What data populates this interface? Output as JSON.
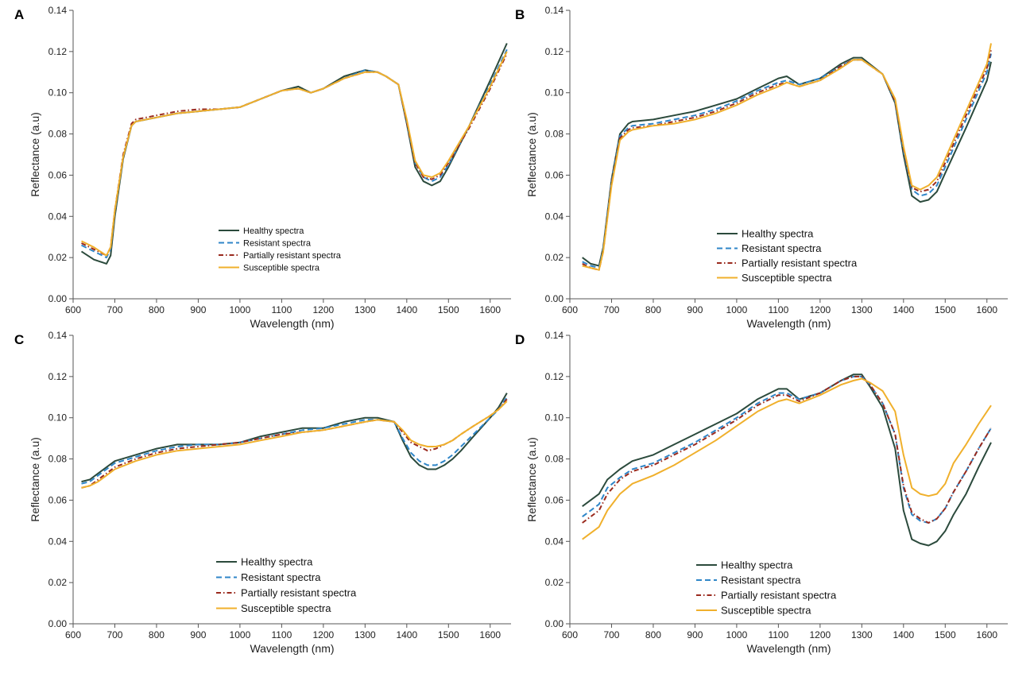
{
  "colors": {
    "healthy": "#2b4a3c",
    "resistant": "#2f86c8",
    "partially_resistant": "#9a2a1e",
    "susceptible": "#f0b02c"
  },
  "chart_data": [
    {
      "panel": "A",
      "type": "line",
      "xlabel": "Wavelength (nm)",
      "ylabel": "Reflectance (a.u)",
      "xlim": [
        600,
        1650
      ],
      "ylim": [
        0,
        0.14
      ],
      "xticks": [
        600,
        700,
        800,
        900,
        1000,
        1100,
        1200,
        1300,
        1400,
        1500,
        1600
      ],
      "yticks": [
        "0.00",
        "0.02",
        "0.04",
        "0.06",
        "0.08",
        "0.10",
        "0.12",
        "0.14"
      ],
      "legend_position": "lower-center",
      "x": [
        620,
        650,
        680,
        690,
        700,
        720,
        740,
        750,
        800,
        850,
        900,
        950,
        1000,
        1050,
        1100,
        1140,
        1170,
        1200,
        1250,
        1300,
        1330,
        1350,
        1380,
        1400,
        1420,
        1440,
        1460,
        1480,
        1500,
        1550,
        1600,
        1640
      ],
      "series": [
        {
          "name": "Healthy spectra",
          "key": "healthy",
          "dash": "solid",
          "values": [
            0.023,
            0.019,
            0.017,
            0.021,
            0.04,
            0.068,
            0.084,
            0.086,
            0.088,
            0.09,
            0.091,
            0.092,
            0.093,
            0.097,
            0.101,
            0.103,
            0.1,
            0.102,
            0.108,
            0.111,
            0.11,
            0.108,
            0.104,
            0.085,
            0.064,
            0.057,
            0.055,
            0.057,
            0.064,
            0.084,
            0.106,
            0.124
          ]
        },
        {
          "name": "Resistant spectra",
          "key": "resistant",
          "dash": "dashed",
          "values": [
            0.026,
            0.023,
            0.02,
            0.024,
            0.042,
            0.069,
            0.084,
            0.086,
            0.088,
            0.09,
            0.091,
            0.092,
            0.093,
            0.097,
            0.101,
            0.102,
            0.1,
            0.102,
            0.107,
            0.111,
            0.11,
            0.108,
            0.104,
            0.086,
            0.066,
            0.059,
            0.057,
            0.059,
            0.065,
            0.084,
            0.104,
            0.121
          ]
        },
        {
          "name": "Partially resistant spectra",
          "key": "partially_resistant",
          "dash": "dashdot",
          "values": [
            0.027,
            0.024,
            0.021,
            0.025,
            0.043,
            0.07,
            0.085,
            0.087,
            0.089,
            0.091,
            0.092,
            0.092,
            0.093,
            0.097,
            0.101,
            0.102,
            0.1,
            0.102,
            0.107,
            0.11,
            0.11,
            0.108,
            0.104,
            0.086,
            0.066,
            0.059,
            0.058,
            0.06,
            0.066,
            0.083,
            0.102,
            0.119
          ]
        },
        {
          "name": "Susceptible spectra",
          "key": "susceptible",
          "dash": "solid",
          "values": [
            0.028,
            0.025,
            0.021,
            0.025,
            0.043,
            0.069,
            0.084,
            0.086,
            0.088,
            0.09,
            0.091,
            0.092,
            0.093,
            0.097,
            0.101,
            0.102,
            0.1,
            0.102,
            0.107,
            0.11,
            0.11,
            0.108,
            0.104,
            0.087,
            0.067,
            0.06,
            0.059,
            0.061,
            0.067,
            0.084,
            0.103,
            0.12
          ]
        }
      ]
    },
    {
      "panel": "B",
      "type": "line",
      "xlabel": "Wavelength (nm)",
      "ylabel": "Reflectance (a.u)",
      "xlim": [
        600,
        1650
      ],
      "ylim": [
        0,
        0.14
      ],
      "xticks": [
        600,
        700,
        800,
        900,
        1000,
        1100,
        1200,
        1300,
        1400,
        1500,
        1600
      ],
      "yticks": [
        "0.00",
        "0.02",
        "0.04",
        "0.06",
        "0.08",
        "0.10",
        "0.12",
        "0.14"
      ],
      "legend_position": "lower-center",
      "x": [
        630,
        650,
        670,
        680,
        700,
        720,
        740,
        750,
        800,
        850,
        900,
        950,
        1000,
        1050,
        1100,
        1120,
        1150,
        1200,
        1250,
        1280,
        1300,
        1350,
        1380,
        1400,
        1420,
        1440,
        1460,
        1480,
        1500,
        1550,
        1600,
        1610
      ],
      "series": [
        {
          "name": "Healthy spectra",
          "key": "healthy",
          "dash": "solid",
          "values": [
            0.02,
            0.017,
            0.016,
            0.025,
            0.058,
            0.08,
            0.085,
            0.086,
            0.087,
            0.089,
            0.091,
            0.094,
            0.097,
            0.102,
            0.107,
            0.108,
            0.104,
            0.107,
            0.114,
            0.117,
            0.117,
            0.109,
            0.095,
            0.07,
            0.05,
            0.047,
            0.048,
            0.052,
            0.061,
            0.083,
            0.106,
            0.115
          ]
        },
        {
          "name": "Resistant spectra",
          "key": "resistant",
          "dash": "dashed",
          "values": [
            0.018,
            0.016,
            0.015,
            0.024,
            0.057,
            0.079,
            0.083,
            0.084,
            0.085,
            0.087,
            0.089,
            0.092,
            0.096,
            0.101,
            0.105,
            0.106,
            0.104,
            0.107,
            0.113,
            0.116,
            0.116,
            0.109,
            0.096,
            0.072,
            0.053,
            0.05,
            0.051,
            0.055,
            0.064,
            0.087,
            0.11,
            0.119
          ]
        },
        {
          "name": "Partially resistant spectra",
          "key": "partially_resistant",
          "dash": "dashdot",
          "values": [
            0.017,
            0.015,
            0.014,
            0.023,
            0.056,
            0.078,
            0.082,
            0.083,
            0.084,
            0.086,
            0.088,
            0.091,
            0.095,
            0.1,
            0.104,
            0.105,
            0.103,
            0.106,
            0.113,
            0.116,
            0.116,
            0.109,
            0.096,
            0.073,
            0.054,
            0.052,
            0.053,
            0.057,
            0.066,
            0.089,
            0.112,
            0.121
          ]
        },
        {
          "name": "Susceptible spectra",
          "key": "susceptible",
          "dash": "solid",
          "values": [
            0.016,
            0.015,
            0.014,
            0.023,
            0.055,
            0.077,
            0.081,
            0.082,
            0.084,
            0.085,
            0.087,
            0.09,
            0.094,
            0.099,
            0.103,
            0.105,
            0.103,
            0.106,
            0.112,
            0.116,
            0.116,
            0.109,
            0.097,
            0.074,
            0.055,
            0.053,
            0.055,
            0.059,
            0.068,
            0.091,
            0.114,
            0.124
          ]
        }
      ]
    },
    {
      "panel": "C",
      "type": "line",
      "xlabel": "Wavelength (nm)",
      "ylabel": "Reflectance (a.u)",
      "xlim": [
        600,
        1650
      ],
      "ylim": [
        0,
        0.14
      ],
      "xticks": [
        600,
        700,
        800,
        900,
        1000,
        1100,
        1200,
        1300,
        1400,
        1500,
        1600
      ],
      "yticks": [
        "0.00",
        "0.02",
        "0.04",
        "0.06",
        "0.08",
        "0.10",
        "0.12",
        "0.14"
      ],
      "legend_position": "lower-center",
      "x": [
        620,
        640,
        660,
        680,
        700,
        750,
        800,
        850,
        900,
        950,
        1000,
        1050,
        1100,
        1150,
        1200,
        1250,
        1300,
        1330,
        1370,
        1390,
        1410,
        1430,
        1450,
        1470,
        1490,
        1510,
        1530,
        1560,
        1600,
        1620,
        1640
      ],
      "series": [
        {
          "name": "Healthy spectra",
          "key": "healthy",
          "dash": "solid",
          "values": [
            0.069,
            0.07,
            0.073,
            0.076,
            0.079,
            0.082,
            0.085,
            0.087,
            0.087,
            0.087,
            0.088,
            0.091,
            0.093,
            0.095,
            0.095,
            0.098,
            0.1,
            0.1,
            0.098,
            0.089,
            0.081,
            0.077,
            0.075,
            0.075,
            0.077,
            0.08,
            0.084,
            0.091,
            0.1,
            0.105,
            0.112
          ]
        },
        {
          "name": "Resistant spectra",
          "key": "resistant",
          "dash": "dashed",
          "values": [
            0.068,
            0.069,
            0.072,
            0.075,
            0.078,
            0.081,
            0.084,
            0.086,
            0.087,
            0.087,
            0.088,
            0.09,
            0.092,
            0.094,
            0.095,
            0.097,
            0.099,
            0.099,
            0.098,
            0.09,
            0.083,
            0.079,
            0.077,
            0.077,
            0.079,
            0.082,
            0.086,
            0.092,
            0.1,
            0.104,
            0.11
          ]
        },
        {
          "name": "Partially resistant spectra",
          "key": "partially_resistant",
          "dash": "dashdot",
          "values": [
            0.066,
            0.067,
            0.07,
            0.073,
            0.076,
            0.08,
            0.083,
            0.085,
            0.086,
            0.087,
            0.088,
            0.09,
            0.092,
            0.093,
            0.094,
            0.096,
            0.098,
            0.099,
            0.098,
            0.093,
            0.088,
            0.086,
            0.084,
            0.085,
            0.087,
            0.089,
            0.092,
            0.096,
            0.101,
            0.104,
            0.109
          ]
        },
        {
          "name": "Susceptible spectra",
          "key": "susceptible",
          "dash": "solid",
          "values": [
            0.066,
            0.067,
            0.069,
            0.072,
            0.075,
            0.079,
            0.082,
            0.084,
            0.085,
            0.086,
            0.087,
            0.089,
            0.091,
            0.093,
            0.094,
            0.096,
            0.098,
            0.099,
            0.098,
            0.094,
            0.089,
            0.087,
            0.086,
            0.086,
            0.087,
            0.089,
            0.092,
            0.096,
            0.101,
            0.104,
            0.108
          ]
        }
      ]
    },
    {
      "panel": "D",
      "type": "line",
      "xlabel": "Wavelength (nm)",
      "ylabel": "Reflectance (a.u)",
      "xlim": [
        600,
        1650
      ],
      "ylim": [
        0,
        0.14
      ],
      "xticks": [
        600,
        700,
        800,
        900,
        1000,
        1100,
        1200,
        1300,
        1400,
        1500,
        1600
      ],
      "yticks": [
        "0.00",
        "0.02",
        "0.04",
        "0.06",
        "0.08",
        "0.10",
        "0.12",
        "0.14"
      ],
      "legend_position": "lower-center",
      "x": [
        630,
        670,
        690,
        720,
        750,
        800,
        850,
        900,
        950,
        1000,
        1050,
        1100,
        1120,
        1150,
        1200,
        1250,
        1280,
        1300,
        1320,
        1350,
        1380,
        1400,
        1420,
        1440,
        1460,
        1480,
        1500,
        1520,
        1550,
        1580,
        1610
      ],
      "series": [
        {
          "name": "Healthy spectra",
          "key": "healthy",
          "dash": "solid",
          "values": [
            0.057,
            0.063,
            0.07,
            0.075,
            0.079,
            0.082,
            0.087,
            0.092,
            0.097,
            0.102,
            0.109,
            0.114,
            0.114,
            0.109,
            0.112,
            0.118,
            0.121,
            0.121,
            0.115,
            0.105,
            0.085,
            0.055,
            0.041,
            0.039,
            0.038,
            0.04,
            0.045,
            0.053,
            0.063,
            0.076,
            0.088
          ]
        },
        {
          "name": "Resistant spectra",
          "key": "resistant",
          "dash": "dashed",
          "values": [
            0.052,
            0.058,
            0.066,
            0.071,
            0.075,
            0.078,
            0.083,
            0.088,
            0.094,
            0.1,
            0.107,
            0.112,
            0.112,
            0.109,
            0.112,
            0.118,
            0.12,
            0.12,
            0.116,
            0.107,
            0.092,
            0.066,
            0.053,
            0.05,
            0.049,
            0.051,
            0.056,
            0.064,
            0.074,
            0.085,
            0.095
          ]
        },
        {
          "name": "Partially resistant spectra",
          "key": "partially_resistant",
          "dash": "dashdot",
          "values": [
            0.049,
            0.055,
            0.063,
            0.07,
            0.074,
            0.077,
            0.082,
            0.087,
            0.093,
            0.099,
            0.106,
            0.111,
            0.111,
            0.108,
            0.112,
            0.118,
            0.12,
            0.12,
            0.116,
            0.107,
            0.092,
            0.067,
            0.054,
            0.051,
            0.049,
            0.051,
            0.056,
            0.064,
            0.074,
            0.085,
            0.095
          ]
        },
        {
          "name": "Susceptible spectra",
          "key": "susceptible",
          "dash": "solid",
          "values": [
            0.041,
            0.047,
            0.055,
            0.063,
            0.068,
            0.072,
            0.077,
            0.083,
            0.089,
            0.096,
            0.103,
            0.108,
            0.109,
            0.107,
            0.111,
            0.116,
            0.118,
            0.119,
            0.117,
            0.113,
            0.103,
            0.082,
            0.066,
            0.063,
            0.062,
            0.063,
            0.068,
            0.078,
            0.087,
            0.097,
            0.106
          ]
        }
      ]
    }
  ]
}
